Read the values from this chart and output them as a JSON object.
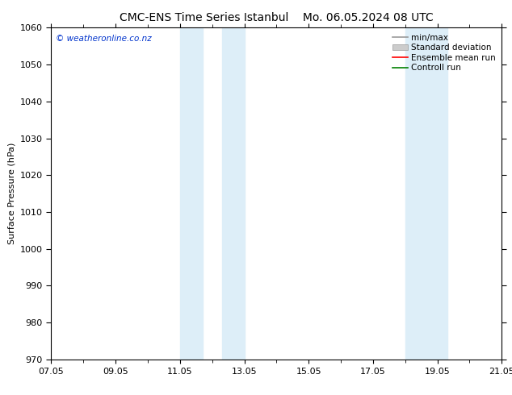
{
  "title_left": "CMC-ENS Time Series Istanbul",
  "title_right": "Mo. 06.05.2024 08 UTC",
  "ylabel": "Surface Pressure (hPa)",
  "ylim": [
    970,
    1060
  ],
  "yticks": [
    970,
    980,
    990,
    1000,
    1010,
    1020,
    1030,
    1040,
    1050,
    1060
  ],
  "xlim_start": 0,
  "xlim_end": 14,
  "xtick_positions": [
    0,
    2,
    4,
    6,
    8,
    10,
    12,
    14
  ],
  "xtick_labels": [
    "07.05",
    "09.05",
    "11.05",
    "13.05",
    "15.05",
    "17.05",
    "19.05",
    "21.05"
  ],
  "shade_bands": [
    {
      "xstart": 4.0,
      "xend": 4.7
    },
    {
      "xstart": 5.3,
      "xend": 6.0
    },
    {
      "xstart": 11.0,
      "xend": 12.3
    }
  ],
  "shade_color": "#ddeef8",
  "background_color": "#ffffff",
  "watermark": "© weatheronline.co.nz",
  "watermark_color": "#0033cc",
  "legend_items": [
    {
      "label": "min/max",
      "color": "#999999",
      "type": "line"
    },
    {
      "label": "Standard deviation",
      "color": "#cccccc",
      "type": "fill"
    },
    {
      "label": "Ensemble mean run",
      "color": "#ff0000",
      "type": "line"
    },
    {
      "label": "Controll run",
      "color": "#008000",
      "type": "line"
    }
  ],
  "title_fontsize": 10,
  "axis_label_fontsize": 8,
  "tick_fontsize": 8,
  "legend_fontsize": 7.5
}
